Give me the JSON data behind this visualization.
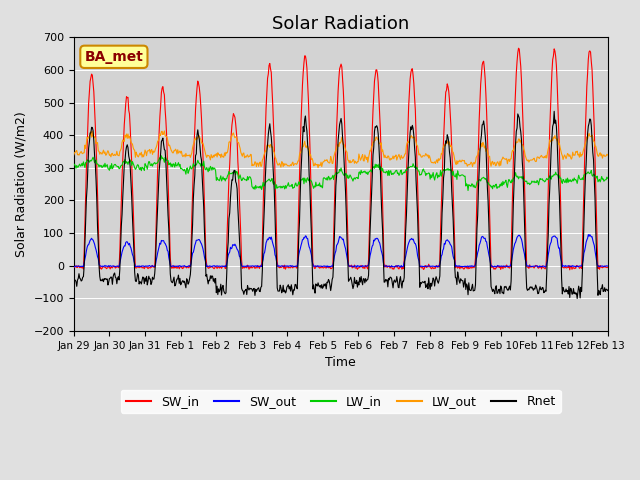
{
  "title": "Solar Radiation",
  "xlabel": "Time",
  "ylabel": "Solar Radiation (W/m2)",
  "ylim": [
    -200,
    700
  ],
  "yticks": [
    -200,
    -100,
    0,
    100,
    200,
    300,
    400,
    500,
    600,
    700
  ],
  "date_labels": [
    "Jan 29",
    "Jan 30",
    "Jan 31",
    "Feb 1",
    "Feb 2",
    "Feb 3",
    "Feb 4",
    "Feb 5",
    "Feb 6",
    "Feb 7",
    "Feb 8",
    "Feb 9",
    "Feb 10",
    "Feb 11",
    "Feb 12",
    "Feb 13"
  ],
  "colors": {
    "SW_in": "#ff0000",
    "SW_out": "#0000ff",
    "LW_in": "#00cc00",
    "LW_out": "#ff9900",
    "Rnet": "#000000"
  },
  "fig_bg_color": "#e0e0e0",
  "plot_bg_color": "#d3d3d3",
  "annotation_text": "BA_met",
  "annotation_fg": "#8B0000",
  "annotation_bg": "#ffff99",
  "annotation_border": "#cc8800",
  "num_days": 15,
  "n_points_per_day": 48,
  "SW_in_peaks": [
    590,
    515,
    545,
    560,
    465,
    622,
    640,
    617,
    602,
    607,
    555,
    625,
    665,
    665,
    660
  ],
  "lw_in_daily": [
    305,
    300,
    310,
    295,
    265,
    240,
    245,
    270,
    285,
    285,
    275,
    245,
    255,
    260,
    265
  ],
  "lw_out_daily": [
    345,
    340,
    350,
    335,
    340,
    310,
    310,
    320,
    330,
    335,
    320,
    310,
    325,
    335,
    340
  ]
}
